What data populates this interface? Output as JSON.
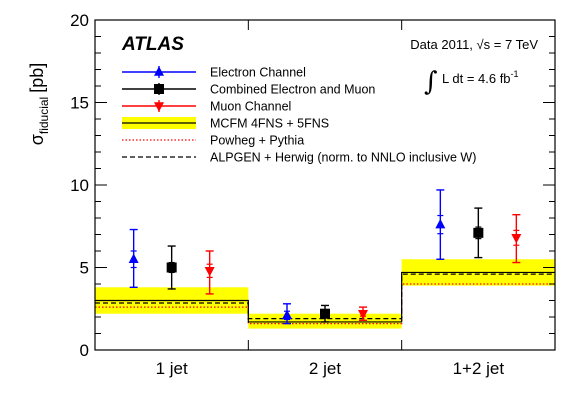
{
  "chart_data": {
    "type": "scatter",
    "brand": "ATLAS",
    "ylabel": "σ",
    "ylabel_sub": "fiducial",
    "ylabel_unit": "[pb]",
    "ylim": [
      0,
      20
    ],
    "yticks": [
      0,
      5,
      10,
      15,
      20
    ],
    "categories": [
      "1 jet",
      "2 jet",
      "1+2 jet"
    ],
    "annotations": {
      "data_line": "Data 2011, √s = 7 TeV",
      "lumi_int": "∫",
      "lumi_text": "L dt = 4.6 fb",
      "lumi_sup": "-1"
    },
    "legend_position": "top-right",
    "series": [
      {
        "name": "Electron Channel",
        "kind": "points",
        "marker": "triangle-up",
        "color": "#0000ff",
        "values": [
          5.5,
          2.1,
          7.6
        ],
        "err_low": [
          1.7,
          0.5,
          2.1
        ],
        "err_high": [
          1.8,
          0.7,
          2.1
        ],
        "stat_err": [
          0.5,
          0.25,
          0.55
        ]
      },
      {
        "name": "Combined Electron and Muon",
        "kind": "points",
        "marker": "square",
        "color": "#000000",
        "values": [
          5.0,
          2.2,
          7.1
        ],
        "err_low": [
          1.3,
          0.5,
          1.5
        ],
        "err_high": [
          1.3,
          0.5,
          1.5
        ],
        "stat_err": [
          0.3,
          0.15,
          0.35
        ]
      },
      {
        "name": "Muon Channel",
        "kind": "points",
        "marker": "triangle-down",
        "color": "#ff0000",
        "values": [
          4.8,
          2.2,
          6.8
        ],
        "err_low": [
          1.4,
          0.4,
          1.5
        ],
        "err_high": [
          1.2,
          0.4,
          1.4
        ],
        "stat_err": [
          0.4,
          0.15,
          0.45
        ]
      },
      {
        "name": "MCFM 4FNS + 5FNS",
        "kind": "band",
        "color": "#000000",
        "band_color": "#ffff00",
        "values": [
          3.0,
          1.7,
          4.7
        ],
        "band_low": [
          2.2,
          1.3,
          3.9
        ],
        "band_high": [
          3.8,
          2.2,
          5.5
        ]
      },
      {
        "name": "Powheg + Pythia",
        "kind": "dotted",
        "color": "#ff0000",
        "values": [
          2.6,
          1.6,
          4.0
        ]
      },
      {
        "name": "ALPGEN + Herwig (norm. to NNLO inclusive W)",
        "kind": "dashed",
        "color": "#000000",
        "values": [
          2.85,
          1.9,
          4.6
        ]
      }
    ]
  }
}
